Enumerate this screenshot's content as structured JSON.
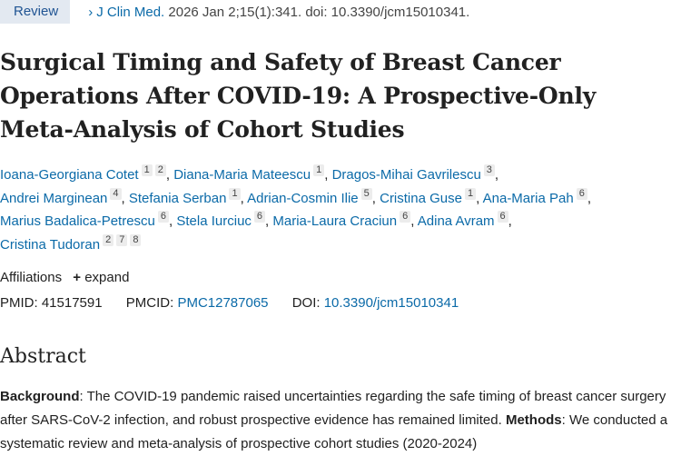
{
  "header": {
    "badge": "Review",
    "journal": "J Clin Med.",
    "citation": " 2026 Jan 2;15(1):341. doi: 10.3390/jcm15010341.",
    "chevron_icon": "chevron-right-icon"
  },
  "title": "Surgical Timing and Safety of Breast Cancer Operations After COVID-19: A Prospective-Only Meta-Analysis of Cohort Studies",
  "authors": [
    {
      "name": "Ioana-Georgiana Cotet",
      "aff": [
        "1",
        "2"
      ]
    },
    {
      "name": "Diana-Maria Mateescu",
      "aff": [
        "1"
      ]
    },
    {
      "name": "Dragos-Mihai Gavrilescu",
      "aff": [
        "3"
      ]
    },
    {
      "name": "Andrei Marginean",
      "aff": [
        "4"
      ]
    },
    {
      "name": "Stefania Serban",
      "aff": [
        "1"
      ]
    },
    {
      "name": "Adrian-Cosmin Ilie",
      "aff": [
        "5"
      ]
    },
    {
      "name": "Cristina Guse",
      "aff": [
        "1"
      ]
    },
    {
      "name": "Ana-Maria Pah",
      "aff": [
        "6"
      ]
    },
    {
      "name": "Marius Badalica-Petrescu",
      "aff": [
        "6"
      ]
    },
    {
      "name": "Stela Iurciuc",
      "aff": [
        "6"
      ]
    },
    {
      "name": "Maria-Laura Craciun",
      "aff": [
        "6"
      ]
    },
    {
      "name": "Adina Avram",
      "aff": [
        "6"
      ]
    },
    {
      "name": "Cristina Tudoran",
      "aff": [
        "2",
        "7",
        "8"
      ]
    }
  ],
  "affiliations": {
    "label": "Affiliations",
    "expand": "expand",
    "icon": "plus-icon"
  },
  "ids": {
    "pmid_label": "PMID: ",
    "pmid": "41517591",
    "pmcid_label": "PMCID: ",
    "pmcid": "PMC12787065",
    "doi_label": "DOI: ",
    "doi": "10.3390/jcm15010341"
  },
  "abstract": {
    "heading": "Abstract",
    "bg_label": "Background",
    "bg_text": ": The COVID-19 pandemic raised uncertainties regarding the safe timing of breast cancer surgery after SARS-CoV-2 infection, and robust prospective evidence has remained limited. ",
    "methods_label": "Methods",
    "methods_text": ": We conducted a systematic review and meta-analysis of prospective cohort studies (2020-2024)"
  }
}
